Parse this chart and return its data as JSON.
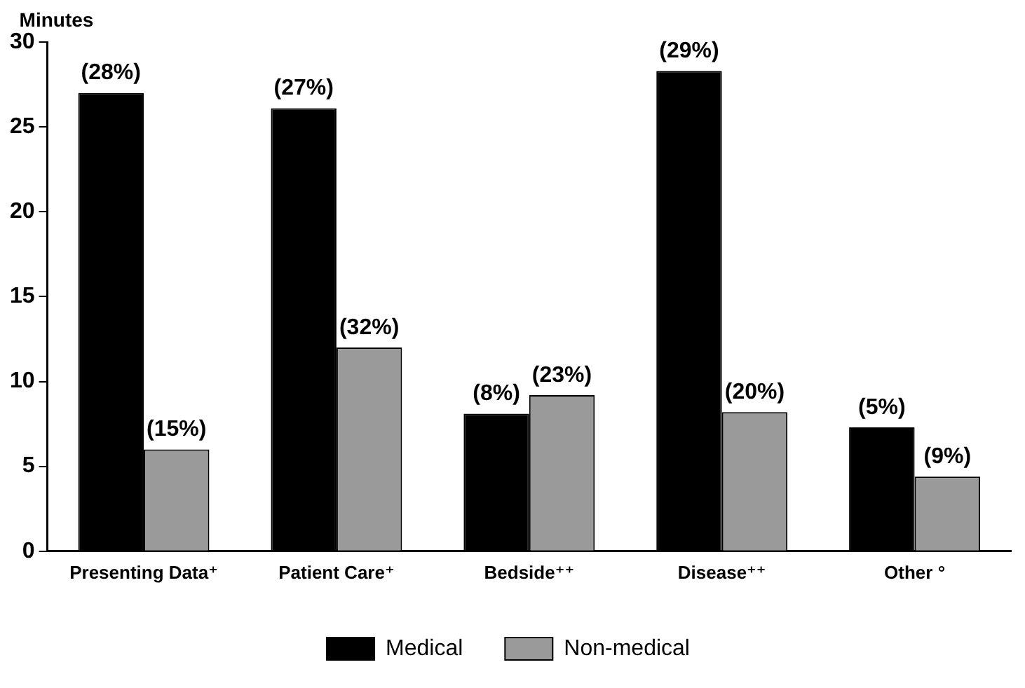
{
  "chart_data": {
    "type": "bar",
    "ylabel": "Minutes",
    "categories": [
      "Presenting Data⁺",
      "Patient Care⁺",
      "Bedside⁺⁺",
      "Disease⁺⁺",
      "Other °"
    ],
    "series": [
      {
        "name": "Medical",
        "color": "#000000",
        "values": [
          27.0,
          26.1,
          8.1,
          28.3,
          7.3
        ]
      },
      {
        "name": "Non-medical",
        "color": "#9a9a9a",
        "values": [
          6.0,
          12.0,
          9.2,
          8.2,
          4.4
        ]
      }
    ],
    "annotations": [
      {
        "text": "(28%)",
        "x": "Presenting Data⁺",
        "y": 27.0
      },
      {
        "text": "(27%)",
        "x": "Patient Care⁺",
        "y": 26.1
      },
      {
        "text": "(8%)",
        "x": "Bedside⁺⁺",
        "y": 8.1
      },
      {
        "text": "(29%)",
        "x": "Disease⁺⁺",
        "y": 28.3
      },
      {
        "text": "(5%)",
        "x": "Other °",
        "y": 7.3
      },
      {
        "text": "(15%)",
        "x": "Presenting Data⁺",
        "y": 6.0
      },
      {
        "text": "(32%)",
        "x": "Patient Care⁺",
        "y": 12.0
      },
      {
        "text": "(23%)",
        "x": "Bedside⁺⁺",
        "y": 9.2
      },
      {
        "text": "(20%)",
        "x": "Disease⁺⁺",
        "y": 8.2
      },
      {
        "text": "(9%)",
        "x": "Other °",
        "y": 4.4
      }
    ],
    "ylim": [
      0,
      30
    ],
    "yticks": [
      0,
      5,
      10,
      15,
      20,
      25,
      30
    ],
    "grid": false,
    "legend": "bottom"
  }
}
